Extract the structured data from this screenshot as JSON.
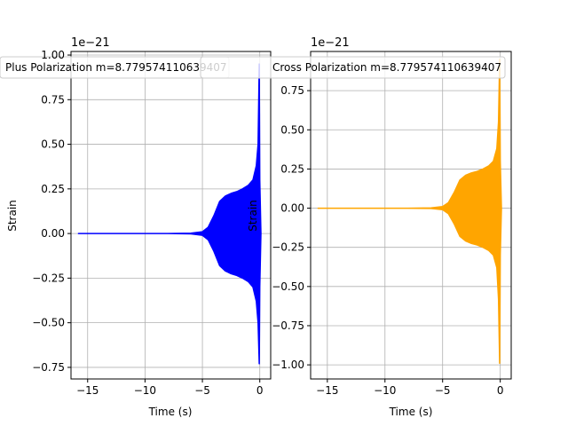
{
  "colors": {
    "plus": "#0000ff",
    "cross": "#ffa500",
    "grid": "#b0b0b0",
    "axis": "#000000"
  },
  "chart_data": [
    {
      "type": "line",
      "title": "",
      "xlabel": "Time (s)",
      "ylabel": "Strain",
      "offset_text": "1e−21",
      "grid": true,
      "legend_placement": "top",
      "xlim": [
        -16.45,
        0.95
      ],
      "ylim": [
        -0.815,
        1.02
      ],
      "xticks": [
        -15,
        -10,
        -5,
        0
      ],
      "xtick_labels": [
        "−15",
        "−10",
        "−5",
        "0"
      ],
      "yticks": [
        -0.75,
        -0.5,
        -0.25,
        0.0,
        0.25,
        0.5,
        0.75,
        1.0
      ],
      "ytick_labels": [
        "−0.75",
        "−0.50",
        "−0.25",
        "0.00",
        "0.25",
        "0.50",
        "0.75",
        "1.00"
      ],
      "series": [
        {
          "name": "Plus Polarization m=8.779574110639407",
          "color_key": "plus",
          "x": [
            -15.8,
            -14,
            -12,
            -10,
            -8,
            -6,
            -5,
            -4.5,
            -4.0,
            -3.5,
            -3.0,
            -2.5,
            -2.0,
            -1.5,
            -1.0,
            -0.6,
            -0.3,
            -0.15,
            -0.05,
            0.0,
            0.1
          ],
          "upper": [
            0.0,
            0.0,
            0.0,
            0.0,
            0.0,
            0.002,
            0.01,
            0.035,
            0.1,
            0.18,
            0.21,
            0.225,
            0.235,
            0.25,
            0.27,
            0.3,
            0.38,
            0.5,
            0.95,
            0.3,
            0.0
          ],
          "lower": [
            0.0,
            0.0,
            0.0,
            0.0,
            0.0,
            -0.002,
            -0.01,
            -0.035,
            -0.1,
            -0.18,
            -0.21,
            -0.225,
            -0.235,
            -0.25,
            -0.27,
            -0.3,
            -0.38,
            -0.5,
            -0.73,
            -0.3,
            0.0
          ]
        }
      ]
    },
    {
      "type": "line",
      "title": "",
      "xlabel": "Time (s)",
      "ylabel": "Strain",
      "offset_text": "1e−21",
      "grid": true,
      "legend_placement": "top",
      "xlim": [
        -16.45,
        0.95
      ],
      "ylim": [
        -1.09,
        1.0
      ],
      "xticks": [
        -15,
        -10,
        -5,
        0
      ],
      "xtick_labels": [
        "−15",
        "−10",
        "−5",
        "0"
      ],
      "yticks": [
        -1.0,
        -0.75,
        -0.5,
        -0.25,
        0.0,
        0.25,
        0.5,
        0.75
      ],
      "ytick_labels": [
        "−1.00",
        "−0.75",
        "−0.50",
        "−0.25",
        "0.00",
        "0.25",
        "0.50",
        "0.75"
      ],
      "series": [
        {
          "name": "Cross Polarization m=8.779574110639407",
          "color_key": "cross",
          "x": [
            -15.8,
            -14,
            -12,
            -10,
            -8,
            -6,
            -5,
            -4.5,
            -4.0,
            -3.5,
            -3.0,
            -2.5,
            -2.0,
            -1.5,
            -1.0,
            -0.6,
            -0.3,
            -0.15,
            -0.05,
            0.0,
            0.1
          ],
          "upper": [
            0.0,
            0.0,
            0.0,
            0.0,
            0.0,
            0.002,
            0.01,
            0.035,
            0.1,
            0.18,
            0.21,
            0.225,
            0.235,
            0.25,
            0.27,
            0.3,
            0.38,
            0.55,
            0.95,
            0.3,
            0.0
          ],
          "lower": [
            0.0,
            0.0,
            0.0,
            0.0,
            0.0,
            -0.002,
            -0.01,
            -0.035,
            -0.1,
            -0.18,
            -0.21,
            -0.225,
            -0.235,
            -0.25,
            -0.27,
            -0.3,
            -0.38,
            -0.58,
            -0.99,
            -0.3,
            0.0
          ]
        }
      ]
    }
  ]
}
